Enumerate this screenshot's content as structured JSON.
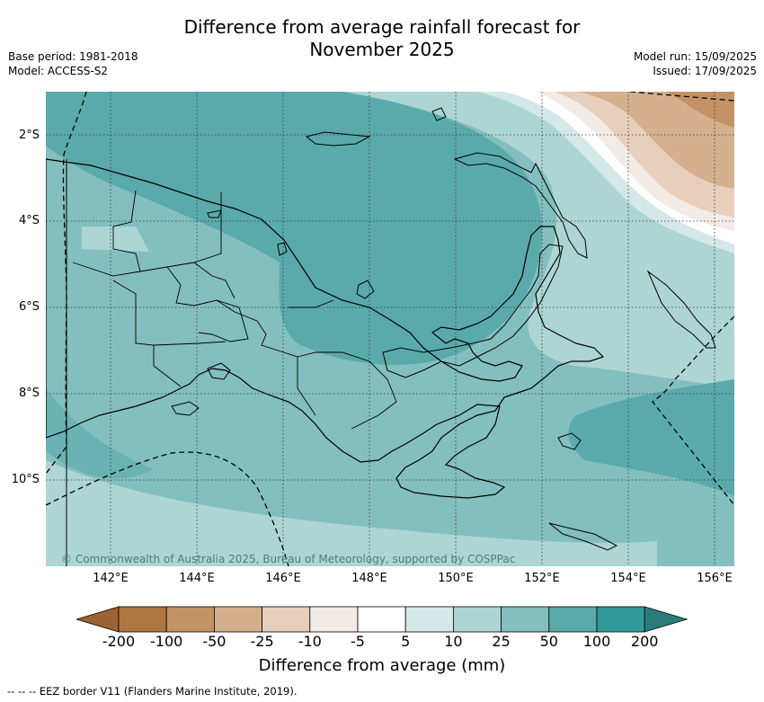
{
  "title": "Difference from average rainfall forecast for\nNovember 2025",
  "meta_left": [
    "Base period: 1981-2018",
    "Model: ACCESS-S2"
  ],
  "meta_right": [
    "Model run: 15/09/2025",
    "Issued: 17/09/2025"
  ],
  "map": {
    "lat_labels": [
      "2°S",
      "4°S",
      "6°S",
      "8°S",
      "10°S"
    ],
    "lon_labels": [
      "142°E",
      "144°E",
      "146°E",
      "148°E",
      "150°E",
      "152°E",
      "154°E",
      "156°E"
    ],
    "credit": "© Commonwealth of Australia 2025, Bureau of Meteorology, supported by COSPPac"
  },
  "colorbar": {
    "title": "Difference from average (mm)",
    "tick_labels": [
      "-200",
      "-100",
      "-50",
      "-25",
      "-10",
      "-5",
      "5",
      "10",
      "25",
      "50",
      "100",
      "200"
    ],
    "colors": [
      "#9b6331",
      "#ae7640",
      "#c39365",
      "#d4b08f",
      "#e7cfbc",
      "#f2ebe6",
      "#ffffff",
      "#d4e8e7",
      "#acd5d4",
      "#83bfbe",
      "#5aaaab",
      "#31999a",
      "#2a7c7a"
    ]
  },
  "footer": "--  --  -- EEZ border V11 (Flanders Marine Institute, 2019)."
}
